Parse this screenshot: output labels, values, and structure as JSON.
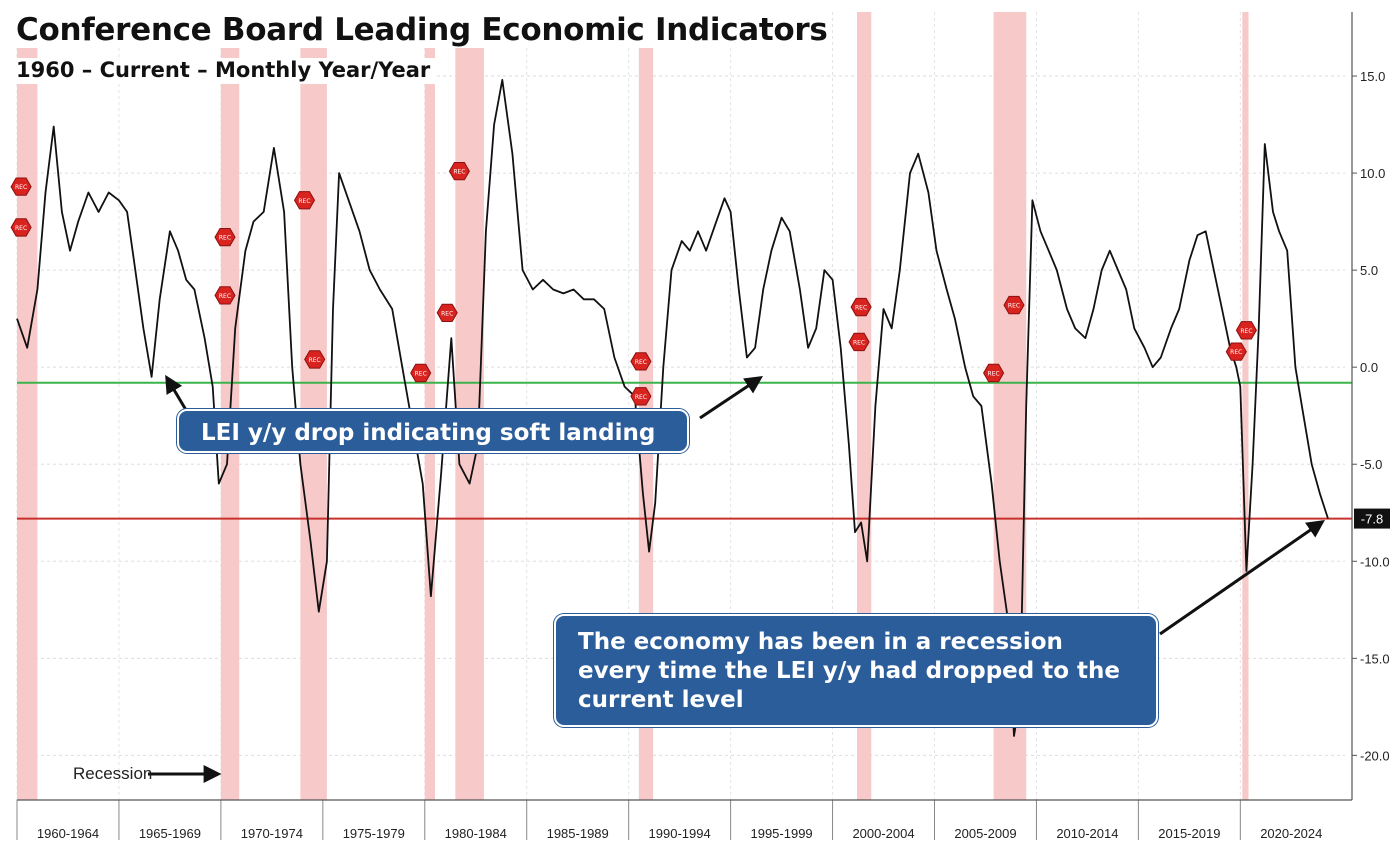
{
  "header": {
    "title": "Conference Board Leading Economic Indicators",
    "subtitle": "1960 – Current – Monthly Year/Year"
  },
  "annotations": {
    "soft_landing": "LEI y/y drop indicating soft landing",
    "recession_note": "The economy has been in a recession every time the LEI y/y had dropped to the current level",
    "recession_legend": "Recession",
    "current_value_label": "-7.8"
  },
  "colors": {
    "line": "#111111",
    "recession_band": "#f7c6c6",
    "green_line": "#3cb34a",
    "red_line": "#c8302c",
    "callout": "#2c5d9b",
    "rec_marker": "#d9231f"
  },
  "chart_data": {
    "type": "line",
    "title": "Conference Board Leading Economic Indicators",
    "subtitle": "1960 – Current – Monthly Year/Year",
    "x_tick_labels": [
      "1960-1964",
      "1965-1969",
      "1970-1974",
      "1975-1979",
      "1980-1984",
      "1985-1989",
      "1990-1994",
      "1995-1999",
      "2000-2004",
      "2005-2009",
      "2010-2014",
      "2015-2019",
      "2020-2024"
    ],
    "y_tick_labels": [
      "15.0",
      "10.0",
      "5.0",
      "0.0",
      "-5.0",
      "-10.0",
      "-15.0",
      "-20.0"
    ],
    "y_ticks": [
      15,
      10,
      5,
      0,
      -5,
      -10,
      -15,
      -20
    ],
    "xlim": [
      1960.0,
      2024.3
    ],
    "ylim": [
      -22.3,
      18.3
    ],
    "grid": true,
    "y_axis_side": "right",
    "reference_lines": [
      {
        "name": "green",
        "y": -0.8
      },
      {
        "name": "red",
        "y": -7.8
      }
    ],
    "current_value": -7.8,
    "recessions": [
      [
        1960.0,
        1961.0
      ],
      [
        1970.0,
        1970.9
      ],
      [
        1973.9,
        1975.2
      ],
      [
        1980.0,
        1980.5
      ],
      [
        1981.5,
        1982.9
      ],
      [
        1990.5,
        1991.2
      ],
      [
        2001.2,
        2001.9
      ],
      [
        2007.9,
        2009.5
      ],
      [
        2020.1,
        2020.4
      ]
    ],
    "series": [
      {
        "values": [
          [
            1960.0,
            2.5
          ],
          [
            1960.5,
            1.0
          ],
          [
            1961.0,
            4.0
          ],
          [
            1961.4,
            9.0
          ],
          [
            1961.8,
            12.4
          ],
          [
            1962.2,
            8.0
          ],
          [
            1962.6,
            6.0
          ],
          [
            1963.0,
            7.5
          ],
          [
            1963.5,
            9.0
          ],
          [
            1964.0,
            8.0
          ],
          [
            1964.5,
            9.0
          ],
          [
            1965.0,
            8.6
          ],
          [
            1965.4,
            8.0
          ],
          [
            1965.8,
            5.0
          ],
          [
            1966.2,
            2.0
          ],
          [
            1966.6,
            -0.5
          ],
          [
            1967.0,
            3.5
          ],
          [
            1967.5,
            7.0
          ],
          [
            1967.9,
            6.0
          ],
          [
            1968.3,
            4.5
          ],
          [
            1968.7,
            4.0
          ],
          [
            1969.2,
            1.5
          ],
          [
            1969.6,
            -1.0
          ],
          [
            1969.9,
            -6.0
          ],
          [
            1970.3,
            -5.0
          ],
          [
            1970.7,
            2.0
          ],
          [
            1971.2,
            6.0
          ],
          [
            1971.6,
            7.5
          ],
          [
            1972.1,
            8.0
          ],
          [
            1972.6,
            11.3
          ],
          [
            1973.1,
            8.0
          ],
          [
            1973.5,
            0.0
          ],
          [
            1973.9,
            -5.0
          ],
          [
            1974.4,
            -9.0
          ],
          [
            1974.8,
            -12.6
          ],
          [
            1975.2,
            -10.0
          ],
          [
            1975.5,
            3.0
          ],
          [
            1975.8,
            10.0
          ],
          [
            1976.3,
            8.5
          ],
          [
            1976.8,
            7.0
          ],
          [
            1977.3,
            5.0
          ],
          [
            1977.8,
            4.0
          ],
          [
            1978.4,
            3.0
          ],
          [
            1978.9,
            0.0
          ],
          [
            1979.4,
            -3.0
          ],
          [
            1979.9,
            -6.0
          ],
          [
            1980.3,
            -11.8
          ],
          [
            1980.8,
            -5.5
          ],
          [
            1981.3,
            1.5
          ],
          [
            1981.7,
            -5.0
          ],
          [
            1982.2,
            -6.0
          ],
          [
            1982.6,
            -4.0
          ],
          [
            1983.0,
            7.0
          ],
          [
            1983.4,
            12.5
          ],
          [
            1983.8,
            14.8
          ],
          [
            1984.3,
            11.0
          ],
          [
            1984.8,
            5.0
          ],
          [
            1985.3,
            4.0
          ],
          [
            1985.8,
            4.5
          ],
          [
            1986.3,
            4.0
          ],
          [
            1986.8,
            3.8
          ],
          [
            1987.3,
            4.0
          ],
          [
            1987.8,
            3.5
          ],
          [
            1988.3,
            3.5
          ],
          [
            1988.8,
            3.0
          ],
          [
            1989.3,
            0.5
          ],
          [
            1989.8,
            -1.0
          ],
          [
            1990.3,
            -1.5
          ],
          [
            1990.7,
            -6.5
          ],
          [
            1991.0,
            -9.5
          ],
          [
            1991.3,
            -7.0
          ],
          [
            1991.7,
            0.0
          ],
          [
            1992.1,
            5.0
          ],
          [
            1992.6,
            6.5
          ],
          [
            1993.0,
            6.0
          ],
          [
            1993.4,
            7.0
          ],
          [
            1993.8,
            6.0
          ],
          [
            1994.3,
            7.5
          ],
          [
            1994.7,
            8.7
          ],
          [
            1995.0,
            8.0
          ],
          [
            1995.4,
            4.0
          ],
          [
            1995.8,
            0.5
          ],
          [
            1996.2,
            1.0
          ],
          [
            1996.6,
            4.0
          ],
          [
            1997.0,
            6.0
          ],
          [
            1997.5,
            7.7
          ],
          [
            1997.9,
            7.0
          ],
          [
            1998.4,
            4.0
          ],
          [
            1998.8,
            1.0
          ],
          [
            1999.2,
            2.0
          ],
          [
            1999.6,
            5.0
          ],
          [
            2000.0,
            4.5
          ],
          [
            2000.4,
            1.0
          ],
          [
            2000.8,
            -4.0
          ],
          [
            2001.1,
            -8.5
          ],
          [
            2001.4,
            -8.0
          ],
          [
            2001.7,
            -10.0
          ],
          [
            2002.1,
            -2.0
          ],
          [
            2002.5,
            3.0
          ],
          [
            2002.9,
            2.0
          ],
          [
            2003.3,
            5.0
          ],
          [
            2003.8,
            10.0
          ],
          [
            2004.2,
            11.0
          ],
          [
            2004.7,
            9.0
          ],
          [
            2005.1,
            6.0
          ],
          [
            2005.6,
            4.0
          ],
          [
            2006.0,
            2.5
          ],
          [
            2006.5,
            0.0
          ],
          [
            2006.9,
            -1.5
          ],
          [
            2007.3,
            -2.0
          ],
          [
            2007.8,
            -6.0
          ],
          [
            2008.2,
            -10.0
          ],
          [
            2008.6,
            -13.0
          ],
          [
            2008.9,
            -19.0
          ],
          [
            2009.2,
            -17.0
          ],
          [
            2009.5,
            -2.0
          ],
          [
            2009.8,
            8.6
          ],
          [
            2010.2,
            7.0
          ],
          [
            2010.6,
            6.0
          ],
          [
            2011.0,
            5.0
          ],
          [
            2011.5,
            3.0
          ],
          [
            2011.9,
            2.0
          ],
          [
            2012.4,
            1.5
          ],
          [
            2012.8,
            3.0
          ],
          [
            2013.2,
            5.0
          ],
          [
            2013.6,
            6.0
          ],
          [
            2014.0,
            5.0
          ],
          [
            2014.4,
            4.0
          ],
          [
            2014.8,
            2.0
          ],
          [
            2015.3,
            1.0
          ],
          [
            2015.7,
            0.0
          ],
          [
            2016.1,
            0.5
          ],
          [
            2016.6,
            2.0
          ],
          [
            2017.0,
            3.0
          ],
          [
            2017.5,
            5.5
          ],
          [
            2017.9,
            6.8
          ],
          [
            2018.3,
            7.0
          ],
          [
            2018.7,
            5.0
          ],
          [
            2019.1,
            3.0
          ],
          [
            2019.5,
            1.0
          ],
          [
            2019.8,
            0.0
          ],
          [
            2020.0,
            -1.0
          ],
          [
            2020.3,
            -10.5
          ],
          [
            2020.6,
            -5.0
          ],
          [
            2020.9,
            2.0
          ],
          [
            2021.2,
            11.5
          ],
          [
            2021.6,
            8.0
          ],
          [
            2021.9,
            7.0
          ],
          [
            2022.3,
            6.0
          ],
          [
            2022.7,
            0.0
          ],
          [
            2023.1,
            -2.5
          ],
          [
            2023.5,
            -5.0
          ],
          [
            2023.9,
            -6.5
          ],
          [
            2024.3,
            -7.8
          ]
        ]
      }
    ],
    "rec_markers": [
      [
        1960.2,
        9.3
      ],
      [
        1960.2,
        7.2
      ],
      [
        1970.2,
        6.7
      ],
      [
        1970.2,
        3.7
      ],
      [
        1974.1,
        8.6
      ],
      [
        1974.6,
        0.4
      ],
      [
        1979.8,
        -0.3
      ],
      [
        1981.1,
        2.8
      ],
      [
        1981.7,
        10.1
      ],
      [
        1990.6,
        0.3
      ],
      [
        1990.6,
        -1.5
      ],
      [
        2001.4,
        3.1
      ],
      [
        2001.3,
        1.3
      ],
      [
        2007.9,
        -0.3
      ],
      [
        2008.9,
        3.2
      ],
      [
        2019.8,
        0.8
      ],
      [
        2020.3,
        1.9
      ]
    ]
  }
}
